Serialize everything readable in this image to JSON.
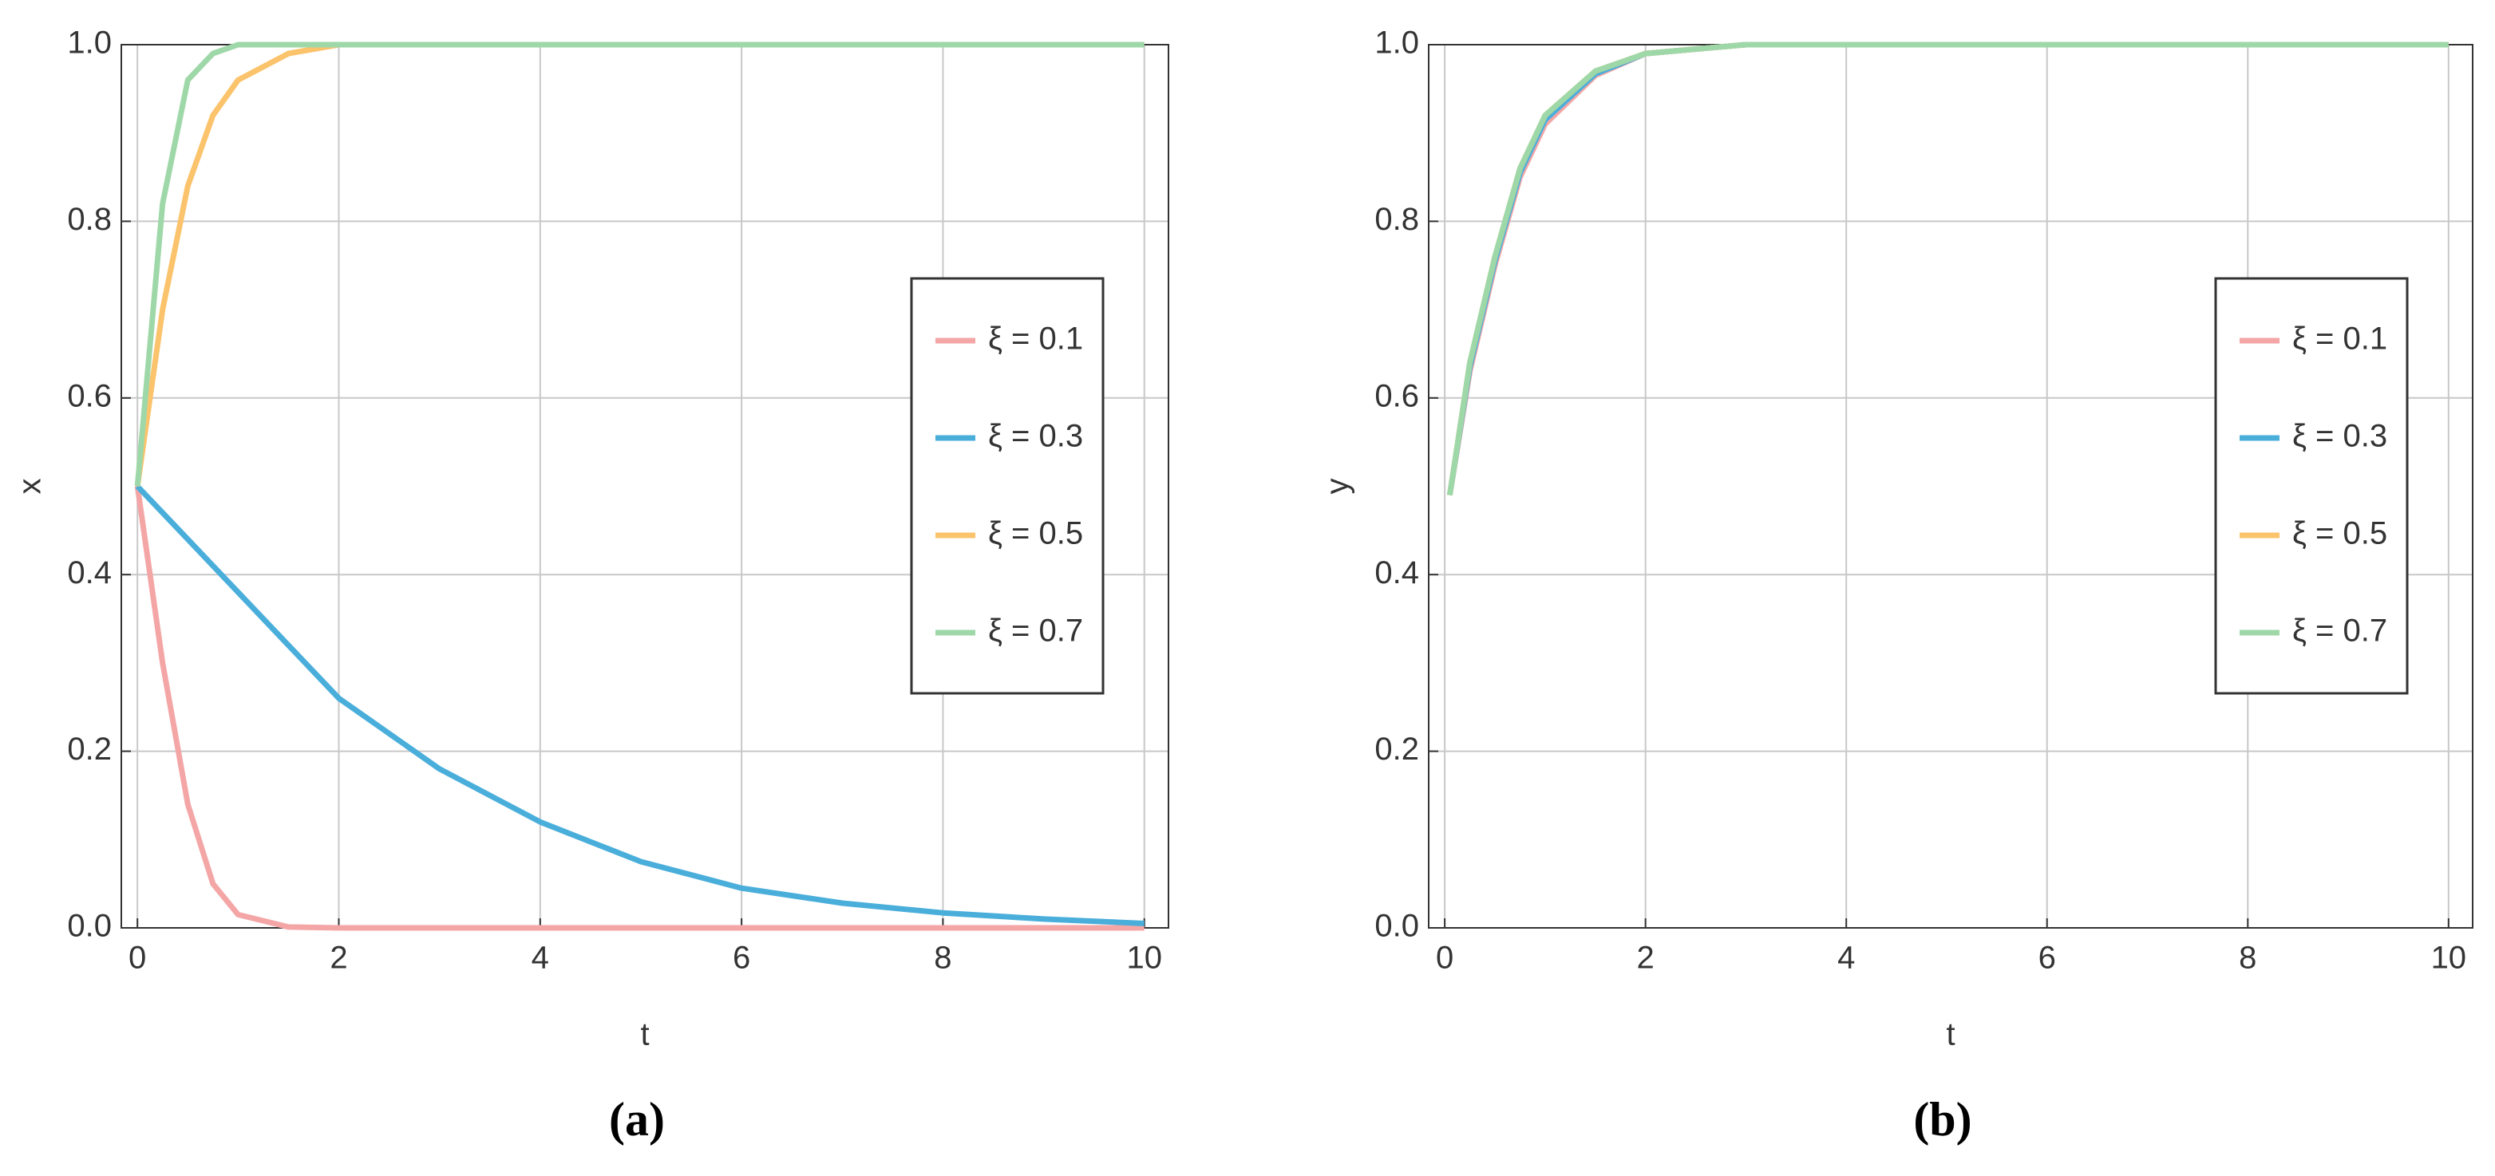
{
  "chart_data": [
    {
      "type": "line",
      "panel_label": "(a)",
      "xlabel": "t",
      "ylabel": "x",
      "x": [
        0,
        0.25,
        0.5,
        0.75,
        1,
        1.5,
        2,
        3,
        4,
        5,
        6,
        7,
        8,
        9,
        10
      ],
      "series": [
        {
          "name": "ξ = 0.1",
          "color": "#f4a6a6",
          "values": [
            0.5,
            0.3,
            0.14,
            0.05,
            0.015,
            0.001,
            0,
            0,
            0,
            0,
            0,
            0,
            0,
            0,
            0
          ]
        },
        {
          "name": "ξ = 0.3",
          "color": "#4aaedb",
          "values": [
            0.5,
            0.47,
            0.44,
            0.41,
            0.38,
            0.32,
            0.26,
            0.18,
            0.12,
            0.075,
            0.045,
            0.028,
            0.017,
            0.01,
            0.005
          ]
        },
        {
          "name": "ξ = 0.5",
          "color": "#fbc36b",
          "values": [
            0.5,
            0.7,
            0.84,
            0.92,
            0.96,
            0.99,
            1,
            1,
            1,
            1,
            1,
            1,
            1,
            1,
            1
          ]
        },
        {
          "name": "ξ = 0.7",
          "color": "#9fd8a8",
          "values": [
            0.5,
            0.82,
            0.96,
            0.99,
            1,
            1,
            1,
            1,
            1,
            1,
            1,
            1,
            1,
            1,
            1
          ]
        }
      ],
      "xlim": [
        -0.16,
        10.24
      ],
      "ylim": [
        0,
        1
      ],
      "xticks": [
        0,
        2,
        4,
        6,
        8,
        10
      ],
      "yticks": [
        {
          "value": 0,
          "label": "0.0"
        },
        0.2,
        0.4,
        0.6,
        0.8,
        {
          "value": 1,
          "label": "1.0"
        }
      ],
      "grid": true,
      "legend": "center right"
    },
    {
      "type": "line",
      "panel_label": "(b)",
      "xlabel": "t",
      "ylabel": "y",
      "x": [
        0.05,
        0.25,
        0.5,
        0.75,
        1,
        1.5,
        2,
        3,
        4,
        5,
        6,
        7,
        8,
        9,
        10
      ],
      "series": [
        {
          "name": "ξ = 0.1",
          "color": "#f4a6a6",
          "values": [
            0.49,
            0.63,
            0.75,
            0.85,
            0.91,
            0.965,
            0.99,
            1,
            1,
            1,
            1,
            1,
            1,
            1,
            1
          ]
        },
        {
          "name": "ξ = 0.3",
          "color": "#4aaedb",
          "values": [
            0.49,
            0.635,
            0.755,
            0.855,
            0.915,
            0.967,
            0.99,
            1,
            1,
            1,
            1,
            1,
            1,
            1,
            1
          ]
        },
        {
          "name": "ξ = 0.5",
          "color": "#fbc36b",
          "values": [
            0.49,
            0.64,
            0.76,
            0.86,
            0.92,
            0.97,
            0.99,
            1,
            1,
            1,
            1,
            1,
            1,
            1,
            1
          ]
        },
        {
          "name": "ξ = 0.7",
          "color": "#9fd8a8",
          "values": [
            0.49,
            0.64,
            0.76,
            0.86,
            0.92,
            0.97,
            0.99,
            1,
            1,
            1,
            1,
            1,
            1,
            1,
            1
          ]
        }
      ],
      "xlim": [
        -0.16,
        10.24
      ],
      "ylim": [
        0,
        1
      ],
      "xticks": [
        0,
        2,
        4,
        6,
        8,
        10
      ],
      "yticks": [
        {
          "value": 0,
          "label": "0.0"
        },
        0.2,
        0.4,
        0.6,
        0.8,
        {
          "value": 1,
          "label": "1.0"
        }
      ],
      "grid": true,
      "legend": "center right"
    }
  ]
}
